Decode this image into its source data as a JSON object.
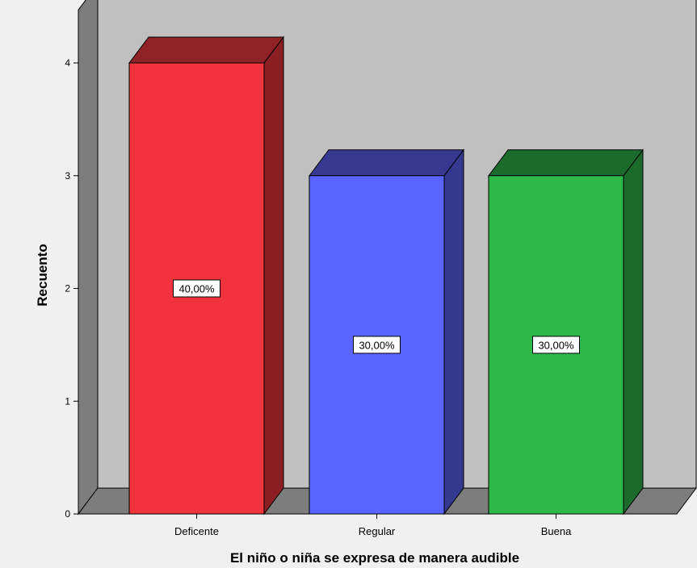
{
  "chart_data": {
    "type": "bar",
    "style": "3d",
    "categories": [
      "Deficente",
      "Regular",
      "Buena"
    ],
    "values": [
      4,
      3,
      3
    ],
    "data_labels": [
      "40,00%",
      "30,00%",
      "30,00%"
    ],
    "bar_colors": [
      "#f0333d",
      "#5a64fe",
      "#2fb84a"
    ],
    "bar_side_colors": [
      "#8c1f24",
      "#34398f",
      "#1c6b2c"
    ],
    "bar_top_colors": [
      "#8e2226",
      "#36398f",
      "#1b6c2c"
    ],
    "xlabel": "El niño o niña se expresa de manera audible",
    "ylabel": "Recuento",
    "yticks": [
      "0",
      "1",
      "2",
      "3",
      "4"
    ],
    "ylim": [
      0,
      4
    ],
    "grid": false,
    "legend": "none",
    "wall_color": "#c0c0c0",
    "side_wall_color": "#7d7d7d",
    "floor_color": "#7d7d7d",
    "background_color": "#f0f0f0"
  }
}
